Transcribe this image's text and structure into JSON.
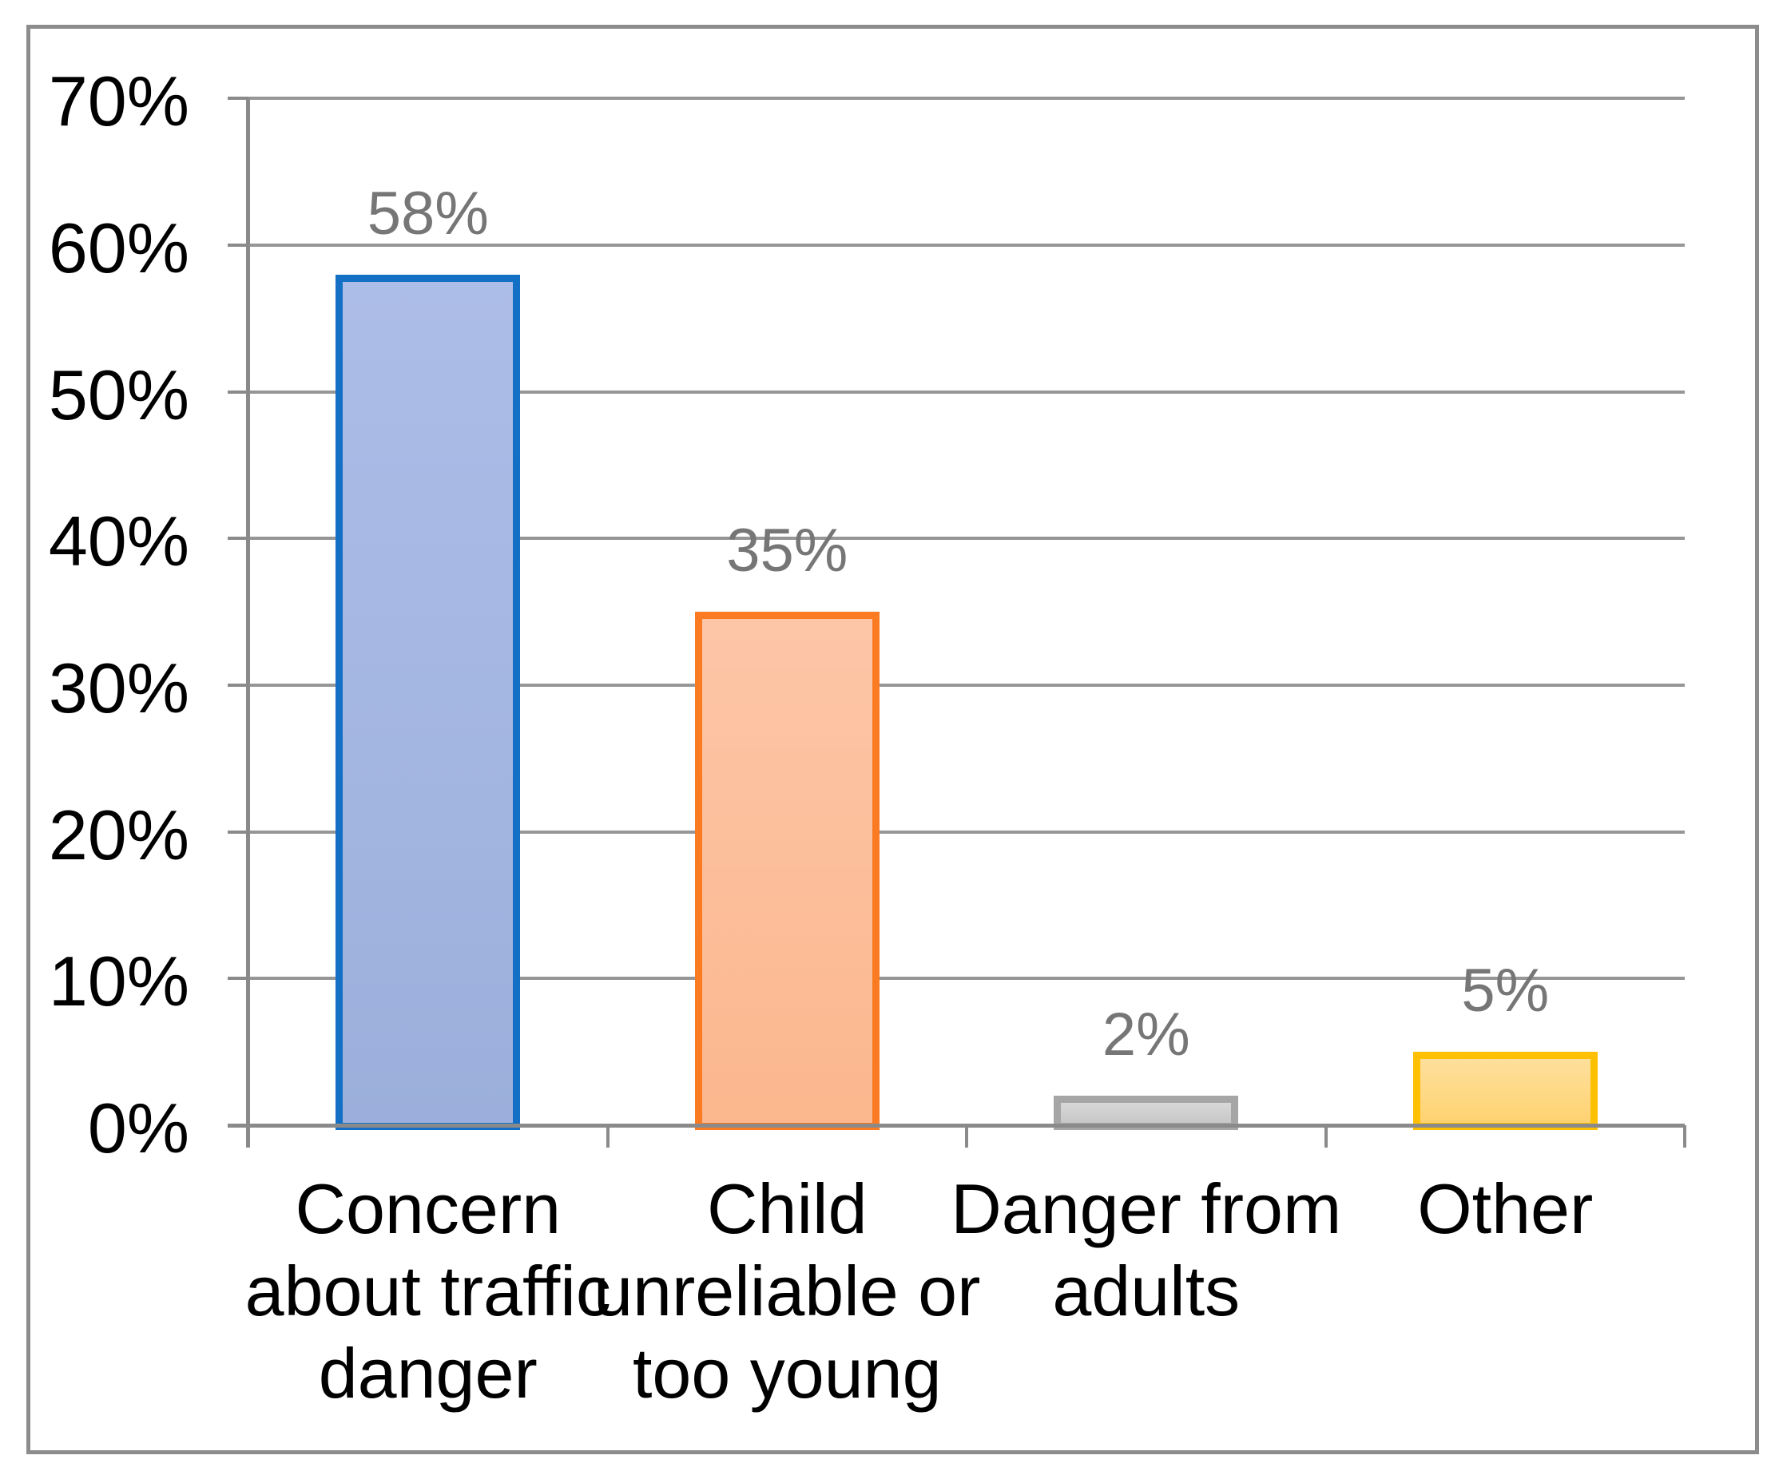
{
  "chart_data": {
    "type": "bar",
    "title": "",
    "xlabel": "",
    "ylabel": "",
    "categories": [
      "Concern\nabout traffic\ndanger",
      "Child\nunreliable or\ntoo young",
      "Danger from\nadults",
      "Other"
    ],
    "values": [
      58,
      35,
      2,
      5
    ],
    "data_labels": [
      "58%",
      "35%",
      "2%",
      "5%"
    ],
    "y_tick_labels": [
      "0%",
      "10%",
      "20%",
      "30%",
      "40%",
      "50%",
      "60%",
      "70%"
    ],
    "ylim": [
      0,
      70
    ],
    "y_step": 10,
    "grid": true,
    "legend_position": "none",
    "bar_styles": [
      {
        "name": "blue",
        "border": "#1470C4",
        "fill_top": "#ACBDE7",
        "fill_bottom": "#9CAFDC"
      },
      {
        "name": "orange",
        "border": "#FA7B22",
        "fill_top": "#FDC6A7",
        "fill_bottom": "#FBB78E"
      },
      {
        "name": "gray",
        "border": "#A6A6A6",
        "fill_top": "#D8D8D8",
        "fill_bottom": "#C7C7C7"
      },
      {
        "name": "yellow",
        "border": "#FEC000",
        "fill_top": "#FEE09C",
        "fill_bottom": "#FED271"
      }
    ],
    "colors": {
      "data_label_text": "#767676",
      "axis_text": "#000000",
      "gridline": "#969696",
      "axis_line": "#8A8A8A",
      "frame_border": "#8C8C8C",
      "background": "#FFFFFF"
    }
  }
}
